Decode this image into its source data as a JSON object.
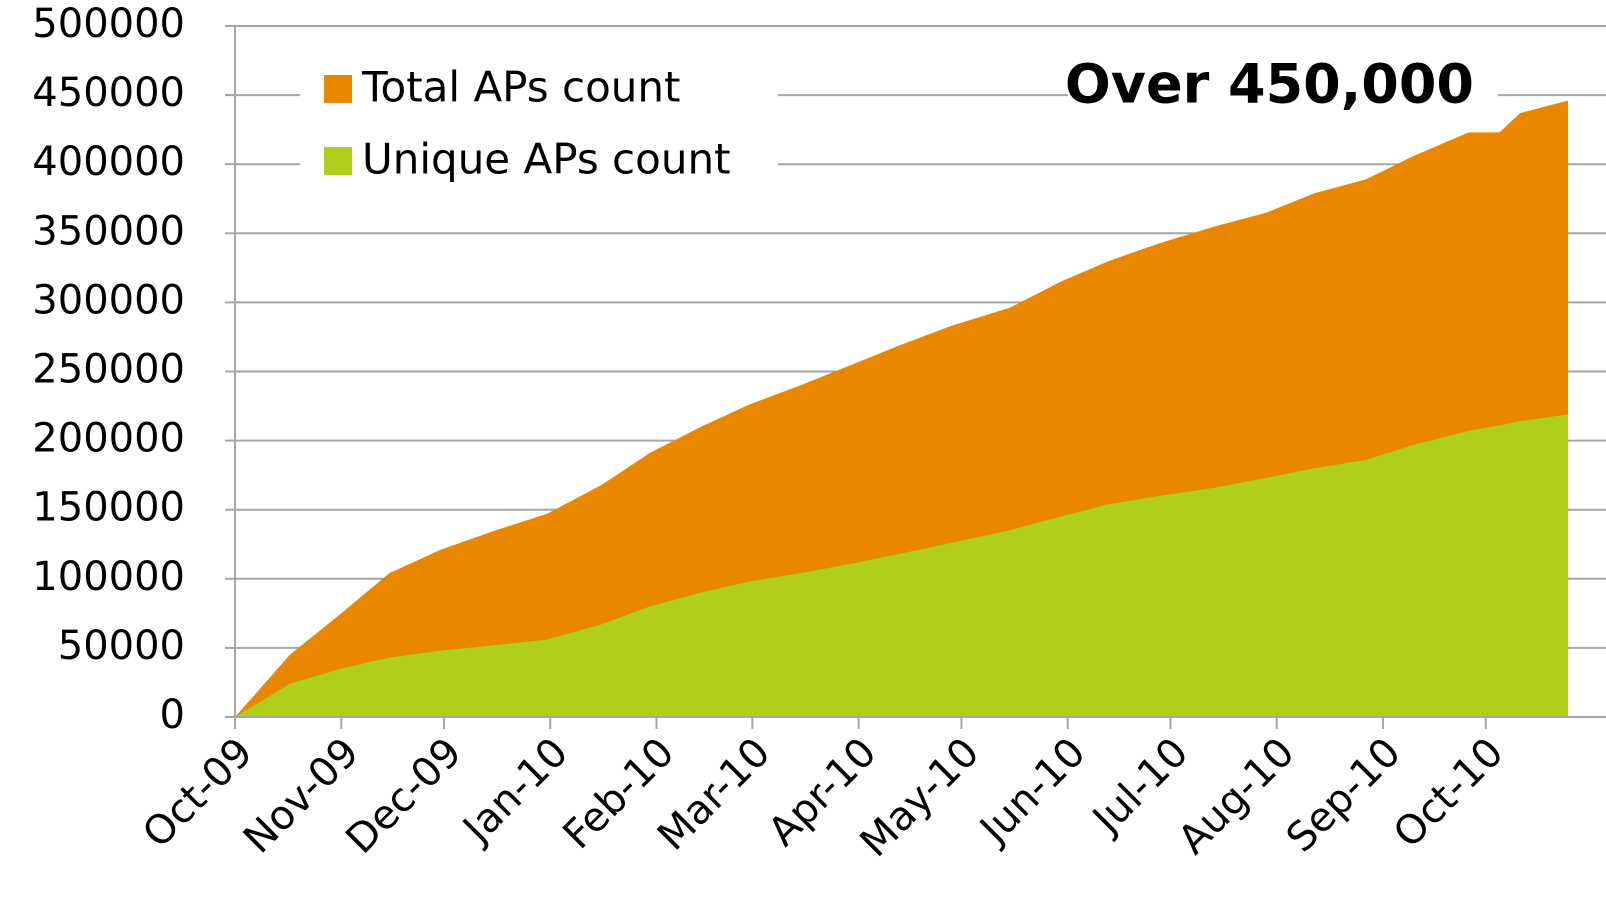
{
  "chart_data": {
    "type": "area",
    "annotation": "Over 450,000",
    "x": [
      0,
      16,
      31,
      45,
      60,
      76,
      91,
      107,
      121,
      136,
      150,
      165,
      180,
      194,
      209,
      226,
      241,
      255,
      270,
      286,
      301,
      315,
      330,
      344,
      360,
      369,
      375,
      389
    ],
    "series": [
      {
        "name": "Total APs count",
        "color": "#e98800",
        "values": [
          0,
          45000,
          75000,
          104000,
          121000,
          135000,
          147000,
          168000,
          191000,
          210000,
          226000,
          240000,
          255000,
          269000,
          283000,
          296000,
          315000,
          330000,
          343000,
          355000,
          365000,
          379000,
          389000,
          406000,
          423000,
          423000,
          437000,
          446000
        ]
      },
      {
        "name": "Unique APs count",
        "color": "#afcf1b",
        "values": [
          0,
          24000,
          35000,
          43000,
          48000,
          52000,
          56000,
          67000,
          80000,
          90000,
          98000,
          104000,
          111000,
          118000,
          126000,
          135000,
          145000,
          154000,
          160000,
          166000,
          173000,
          180000,
          186000,
          197000,
          207000,
          211000,
          214000,
          219000
        ]
      }
    ],
    "xlim": [
      0,
      389
    ],
    "xticks": [
      {
        "value": 0,
        "label": "Oct-09"
      },
      {
        "value": 31,
        "label": "Nov-09"
      },
      {
        "value": 61,
        "label": "Dec-09"
      },
      {
        "value": 92,
        "label": "Jan-10"
      },
      {
        "value": 123,
        "label": "Feb-10"
      },
      {
        "value": 151,
        "label": "Mar-10"
      },
      {
        "value": 182,
        "label": "Apr-10"
      },
      {
        "value": 212,
        "label": "May-10"
      },
      {
        "value": 243,
        "label": "Jun-10"
      },
      {
        "value": 273,
        "label": "Jul-10"
      },
      {
        "value": 304,
        "label": "Aug-10"
      },
      {
        "value": 335,
        "label": "Sep-10"
      },
      {
        "value": 365,
        "label": "Oct-10"
      }
    ],
    "ylim": [
      0,
      500000
    ],
    "yticks": [
      0,
      50000,
      100000,
      150000,
      200000,
      250000,
      300000,
      350000,
      400000,
      450000,
      500000
    ],
    "grid": true,
    "legend": "top-left"
  }
}
